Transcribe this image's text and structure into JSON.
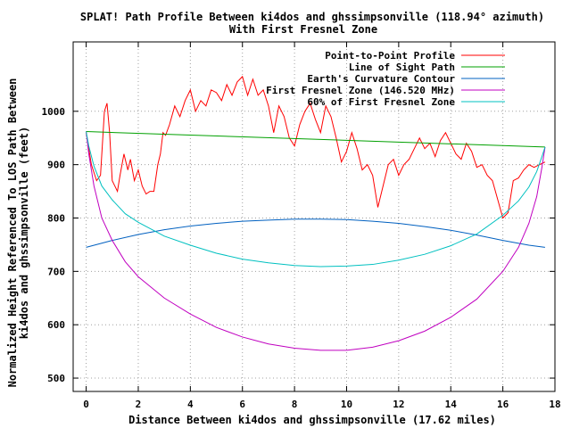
{
  "chart_data": {
    "type": "line",
    "title": "SPLAT! Path Profile Between ki4dos and ghssimpsonville (118.94° azimuth)",
    "subtitle": "With First Fresnel Zone",
    "xlabel": "Distance Between ki4dos and ghssimpsonville (17.62 miles)",
    "ylabel_line1": "Normalized Height Referenced To LOS Path Between",
    "ylabel_line2": "ki4dos and ghssimpsonville (feet)",
    "xlim": [
      -0.5,
      18
    ],
    "ylim": [
      475,
      1130
    ],
    "xticks": [
      0,
      2,
      4,
      6,
      8,
      10,
      12,
      14,
      16,
      18
    ],
    "yticks": [
      500,
      600,
      700,
      800,
      900,
      1000
    ],
    "grid": true,
    "legend_position": "top-right",
    "series": [
      {
        "name": "Point-to-Point Profile",
        "color": "#ff0000",
        "x": [
          0,
          0.2,
          0.4,
          0.55,
          0.7,
          0.8,
          0.9,
          1.0,
          1.1,
          1.2,
          1.3,
          1.45,
          1.6,
          1.7,
          1.85,
          2.0,
          2.15,
          2.3,
          2.45,
          2.6,
          2.75,
          2.85,
          2.95,
          3.05,
          3.2,
          3.4,
          3.6,
          3.8,
          4.0,
          4.2,
          4.4,
          4.6,
          4.8,
          5.0,
          5.2,
          5.4,
          5.6,
          5.8,
          6.0,
          6.2,
          6.4,
          6.6,
          6.8,
          7.0,
          7.2,
          7.4,
          7.6,
          7.8,
          8.0,
          8.2,
          8.4,
          8.6,
          8.8,
          9.0,
          9.2,
          9.4,
          9.6,
          9.8,
          10.0,
          10.2,
          10.4,
          10.6,
          10.8,
          11.0,
          11.2,
          11.4,
          11.6,
          11.8,
          12.0,
          12.2,
          12.4,
          12.6,
          12.8,
          13.0,
          13.2,
          13.4,
          13.6,
          13.8,
          14.0,
          14.2,
          14.4,
          14.6,
          14.8,
          15.0,
          15.2,
          15.4,
          15.6,
          15.8,
          16.0,
          16.2,
          16.4,
          16.6,
          16.8,
          17.0,
          17.2,
          17.4,
          17.62
        ],
        "values": [
          960,
          900,
          870,
          880,
          1000,
          1015,
          960,
          870,
          860,
          850,
          880,
          920,
          890,
          910,
          870,
          890,
          860,
          845,
          850,
          850,
          900,
          920,
          960,
          955,
          975,
          1010,
          990,
          1020,
          1040,
          1000,
          1020,
          1010,
          1040,
          1035,
          1020,
          1050,
          1030,
          1055,
          1065,
          1030,
          1060,
          1030,
          1040,
          1010,
          960,
          1010,
          990,
          950,
          935,
          975,
          1000,
          1015,
          985,
          960,
          1010,
          990,
          950,
          905,
          925,
          960,
          930,
          890,
          900,
          880,
          820,
          860,
          900,
          910,
          880,
          900,
          910,
          930,
          950,
          930,
          940,
          915,
          945,
          960,
          940,
          920,
          910,
          940,
          925,
          895,
          900,
          880,
          870,
          835,
          800,
          810,
          870,
          875,
          890,
          900,
          895,
          900,
          905
        ]
      },
      {
        "name": "Line of Sight Path",
        "color": "#00a000",
        "x": [
          0,
          17.62
        ],
        "values": [
          962,
          933
        ]
      },
      {
        "name": "Earth's Curvature Contour",
        "color": "#0060c0",
        "x": [
          0,
          1,
          2,
          3,
          4,
          5,
          6,
          7,
          8,
          9,
          10,
          11,
          12,
          13,
          14,
          15,
          16,
          17,
          17.62
        ],
        "values": [
          745,
          758,
          769,
          778,
          785,
          790,
          794,
          796,
          798,
          798,
          797,
          794,
          790,
          784,
          777,
          768,
          758,
          749,
          745
        ]
      },
      {
        "name": "First Fresnel Zone (146.520 MHz)",
        "color": "#c000c0",
        "x": [
          0,
          0.1,
          0.3,
          0.6,
          1,
          1.5,
          2,
          3,
          4,
          5,
          6,
          7,
          8,
          9,
          10,
          11,
          12,
          13,
          14,
          15,
          16,
          16.6,
          17,
          17.3,
          17.5,
          17.62
        ],
        "values": [
          962,
          920,
          860,
          800,
          758,
          718,
          690,
          650,
          620,
          595,
          577,
          564,
          556,
          552,
          552,
          558,
          570,
          588,
          614,
          648,
          700,
          745,
          790,
          840,
          895,
          933
        ]
      },
      {
        "name": "60% of First Fresnel Zone",
        "color": "#00c0c0",
        "x": [
          0,
          0.1,
          0.3,
          0.6,
          1,
          1.5,
          2,
          3,
          4,
          5,
          6,
          7,
          8,
          9,
          10,
          11,
          12,
          13,
          14,
          15,
          16,
          16.6,
          17,
          17.3,
          17.5,
          17.62
        ],
        "values": [
          962,
          935,
          897,
          860,
          834,
          808,
          792,
          766,
          749,
          734,
          723,
          716,
          711,
          709,
          710,
          713,
          721,
          732,
          748,
          770,
          805,
          832,
          858,
          887,
          915,
          933
        ]
      }
    ]
  }
}
